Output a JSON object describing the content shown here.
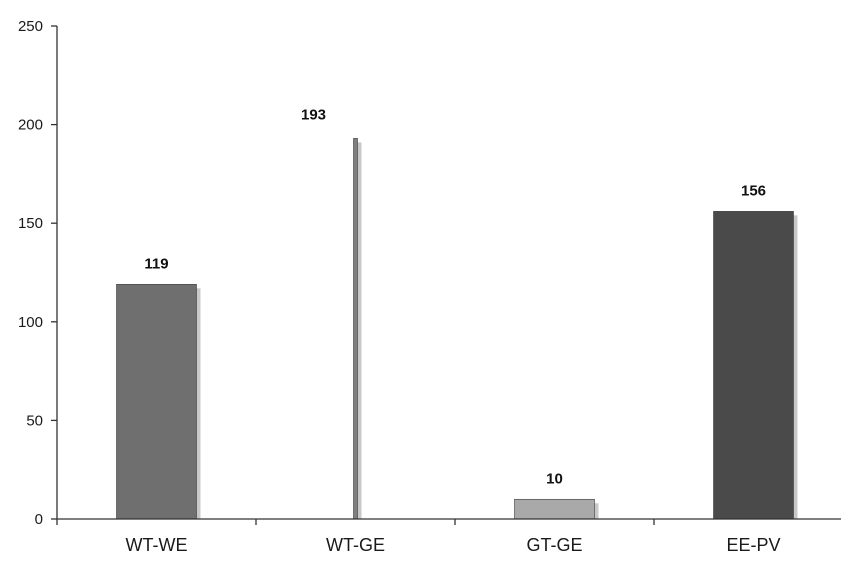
{
  "chart_data": {
    "type": "bar",
    "categories": [
      "WT-WE",
      "WT-GE",
      "GT-GE",
      "EE-PV"
    ],
    "values": [
      119,
      193,
      10,
      156
    ],
    "data_labels": [
      "119",
      "193",
      "10",
      "156"
    ],
    "bar_colors": [
      "#6f6f6f",
      "#7f7f7f",
      "#a9a9a9",
      "#4a4a4a"
    ],
    "shadow_color": "#c8c8c8",
    "ylim": [
      0,
      250
    ],
    "yticks": [
      0,
      50,
      100,
      150,
      200,
      250
    ],
    "ytick_labels": [
      "0",
      "50",
      "100",
      "150",
      "200",
      "250"
    ],
    "grid": false,
    "legend": "none"
  }
}
